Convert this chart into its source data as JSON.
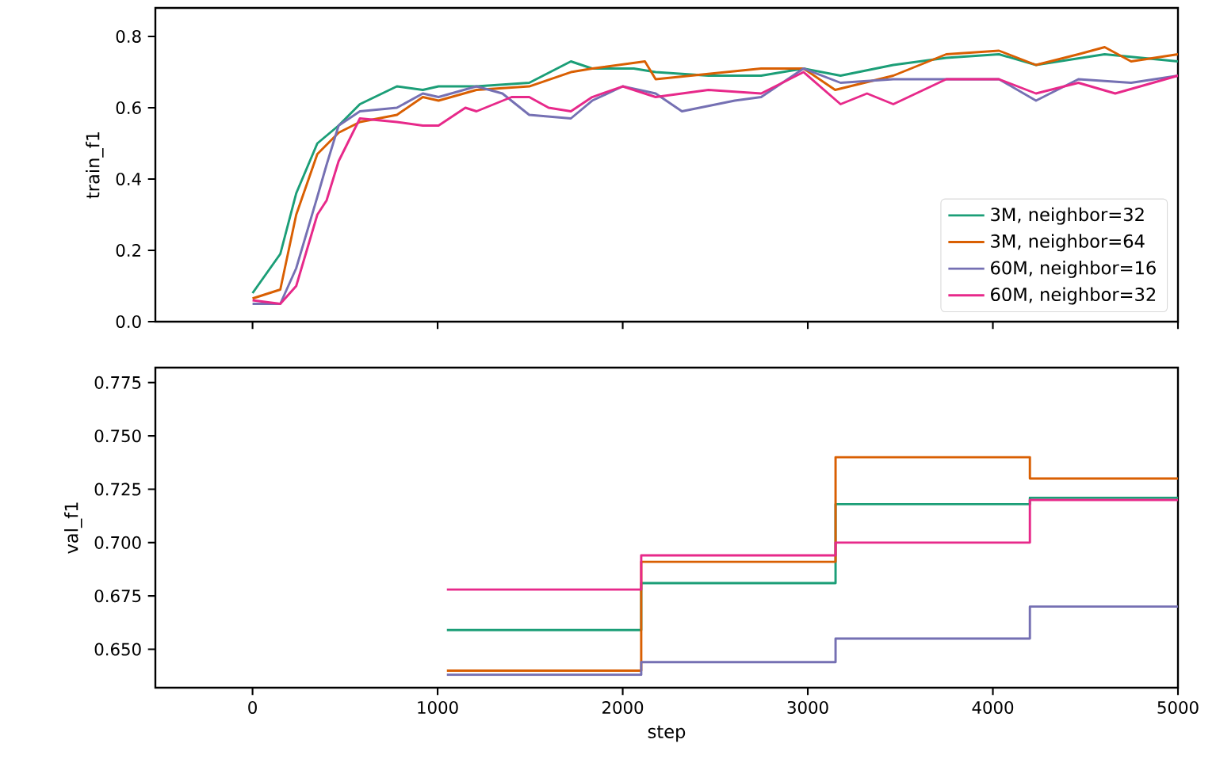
{
  "chart_data": [
    {
      "type": "line",
      "ylabel": "train_f1",
      "xlim": [
        -525,
        5000
      ],
      "ylim": [
        0,
        0.88
      ],
      "xticks": [
        0,
        1000,
        2000,
        3000,
        4000,
        5000
      ],
      "yticks": [
        {
          "value": 0,
          "label": "0.0"
        },
        {
          "value": 0.2,
          "label": "0.2"
        },
        {
          "value": 0.4,
          "label": "0.4"
        },
        {
          "value": 0.6,
          "label": "0.6"
        },
        {
          "value": 0.8,
          "label": "0.8"
        }
      ],
      "tick_labels": "y",
      "legend": "bottom right",
      "grid": false,
      "series": [
        {
          "name": "3M, neighbor=32",
          "color": "#1b9e77",
          "x": [
            0,
            150,
            236,
            350,
            465,
            580,
            780,
            920,
            1005,
            1210,
            1495,
            1720,
            1835,
            2060,
            2178,
            2463,
            2748,
            2977,
            3177,
            3462,
            3748,
            4033,
            4233,
            4604,
            5000
          ],
          "values": [
            0.08,
            0.19,
            0.36,
            0.5,
            0.55,
            0.61,
            0.66,
            0.65,
            0.66,
            0.66,
            0.67,
            0.73,
            0.71,
            0.71,
            0.7,
            0.69,
            0.69,
            0.71,
            0.69,
            0.72,
            0.74,
            0.75,
            0.72,
            0.75,
            0.73
          ]
        },
        {
          "name": "3M, neighbor=64",
          "color": "#d95f02",
          "x": [
            0,
            150,
            236,
            350,
            465,
            580,
            780,
            920,
            1005,
            1210,
            1495,
            1720,
            1835,
            2120,
            2178,
            2748,
            2977,
            3148,
            3462,
            3748,
            4033,
            4233,
            4462,
            4604,
            4747,
            5000
          ],
          "values": [
            0.065,
            0.09,
            0.3,
            0.47,
            0.53,
            0.56,
            0.58,
            0.63,
            0.62,
            0.65,
            0.66,
            0.7,
            0.71,
            0.73,
            0.68,
            0.71,
            0.71,
            0.65,
            0.69,
            0.75,
            0.76,
            0.72,
            0.75,
            0.77,
            0.73,
            0.75
          ]
        },
        {
          "name": "60M, neighbor=16",
          "color": "#7570b3",
          "x": [
            0,
            150,
            236,
            350,
            400,
            465,
            580,
            780,
            920,
            1005,
            1210,
            1350,
            1495,
            1720,
            1835,
            2000,
            2178,
            2320,
            2605,
            2748,
            2977,
            3177,
            3462,
            3748,
            4033,
            4233,
            4462,
            4747,
            5000
          ],
          "values": [
            0.05,
            0.05,
            0.15,
            0.35,
            0.44,
            0.55,
            0.59,
            0.6,
            0.64,
            0.63,
            0.66,
            0.64,
            0.58,
            0.57,
            0.62,
            0.66,
            0.64,
            0.59,
            0.62,
            0.63,
            0.71,
            0.67,
            0.68,
            0.68,
            0.68,
            0.62,
            0.68,
            0.67,
            0.69
          ]
        },
        {
          "name": "60M, neighbor=32",
          "color": "#e7298a",
          "x": [
            0,
            150,
            236,
            350,
            400,
            465,
            580,
            780,
            920,
            1005,
            1150,
            1210,
            1400,
            1495,
            1600,
            1720,
            1835,
            2000,
            2178,
            2463,
            2748,
            2977,
            3177,
            3320,
            3462,
            3748,
            4033,
            4233,
            4462,
            4661,
            5000
          ],
          "values": [
            0.06,
            0.05,
            0.1,
            0.3,
            0.34,
            0.45,
            0.57,
            0.56,
            0.55,
            0.55,
            0.6,
            0.59,
            0.63,
            0.63,
            0.6,
            0.59,
            0.63,
            0.66,
            0.63,
            0.65,
            0.64,
            0.7,
            0.61,
            0.64,
            0.61,
            0.68,
            0.68,
            0.64,
            0.67,
            0.64,
            0.69
          ]
        }
      ]
    },
    {
      "type": "step",
      "xlabel": "step",
      "ylabel": "val_f1",
      "xlim": [
        -525,
        5000
      ],
      "ylim": [
        0.632,
        0.782
      ],
      "xticks": [
        0,
        1000,
        2000,
        3000,
        4000,
        5000
      ],
      "yticks": [
        {
          "value": 0.65,
          "label": "0.650"
        },
        {
          "value": 0.675,
          "label": "0.675"
        },
        {
          "value": 0.7,
          "label": "0.700"
        },
        {
          "value": 0.725,
          "label": "0.725"
        },
        {
          "value": 0.75,
          "label": "0.750"
        },
        {
          "value": 0.775,
          "label": "0.775"
        }
      ],
      "grid": false,
      "x": [
        1050,
        2100,
        3150,
        4200,
        5000
      ],
      "series": [
        {
          "color": "#1b9e77",
          "values": [
            0.659,
            0.681,
            0.718,
            0.721,
            0.721
          ]
        },
        {
          "color": "#d95f02",
          "values": [
            0.64,
            0.691,
            0.74,
            0.73,
            0.73
          ]
        },
        {
          "color": "#7570b3",
          "values": [
            0.638,
            0.644,
            0.655,
            0.67,
            0.67
          ]
        },
        {
          "color": "#e7298a",
          "values": [
            0.678,
            0.694,
            0.7,
            0.72,
            0.72
          ]
        }
      ]
    }
  ]
}
